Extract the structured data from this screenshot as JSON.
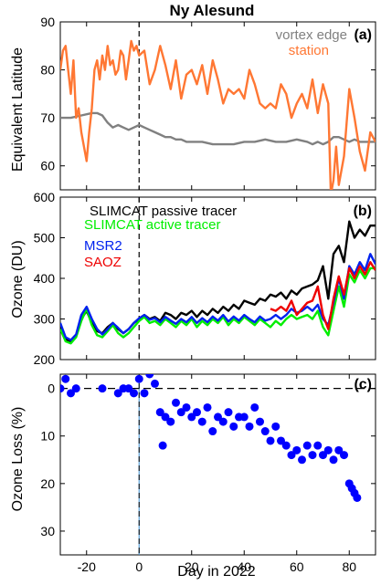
{
  "chart_data": [
    {
      "type": "line",
      "title": "Ny Alesund",
      "panel_label": "(a)",
      "ylabel": "Equivalent Latitude",
      "xlim": [
        -30,
        90
      ],
      "ylim": [
        55,
        90
      ],
      "yticks": [
        60,
        70,
        80,
        90
      ],
      "legend_position": "top-right",
      "series": [
        {
          "name": "vortex edge",
          "color": "#808080",
          "x": [
            -30,
            -26,
            -22,
            -18,
            -16,
            -14,
            -12,
            -10,
            -8,
            -6,
            -4,
            -2,
            0,
            2,
            4,
            6,
            8,
            10,
            12,
            14,
            16,
            18,
            20,
            24,
            28,
            32,
            36,
            40,
            44,
            48,
            52,
            56,
            60,
            64,
            66,
            68,
            70,
            72,
            74,
            76,
            78,
            80,
            82,
            84,
            86,
            88,
            90
          ],
          "y": [
            70,
            70,
            70.5,
            71,
            71,
            70.5,
            69,
            68,
            68.5,
            68,
            67.5,
            68,
            68.5,
            68,
            67.5,
            67,
            66.5,
            66,
            66,
            65.5,
            65.5,
            65,
            65,
            65,
            64.5,
            64.5,
            64.5,
            65,
            65,
            65.5,
            65,
            65,
            65.5,
            65,
            64.5,
            65,
            64.5,
            65,
            66,
            66,
            65.5,
            65,
            65.5,
            65,
            65,
            65,
            65
          ]
        },
        {
          "name": "station",
          "color": "#ff7733",
          "x": [
            -30,
            -29,
            -28,
            -27,
            -26,
            -25,
            -24,
            -23,
            -22,
            -21,
            -20,
            -19,
            -18,
            -17,
            -16,
            -15,
            -14,
            -13,
            -12,
            -11,
            -10,
            -9,
            -8,
            -7,
            -6,
            -5,
            -4,
            -3,
            -2,
            -1,
            0,
            2,
            4,
            6,
            8,
            10,
            12,
            14,
            16,
            18,
            20,
            22,
            24,
            26,
            28,
            30,
            32,
            34,
            36,
            38,
            40,
            42,
            44,
            46,
            48,
            50,
            52,
            54,
            56,
            58,
            60,
            62,
            64,
            66,
            68,
            70,
            72,
            73,
            74,
            75,
            76,
            78,
            80,
            82,
            84,
            86,
            88,
            90
          ],
          "y": [
            80,
            84,
            85,
            80,
            75,
            82,
            70,
            72,
            67,
            64,
            61,
            67,
            72,
            80,
            82,
            78,
            83,
            80,
            85,
            81,
            82,
            79,
            80,
            84,
            83,
            78,
            82,
            86,
            84,
            85,
            83,
            84,
            77,
            80,
            85,
            81,
            76,
            82,
            74,
            79,
            80,
            77,
            81,
            75,
            82,
            78,
            73,
            76,
            75,
            76,
            74,
            80,
            77,
            73,
            72,
            73,
            72,
            77,
            75,
            70,
            73,
            75,
            72,
            78,
            71,
            77,
            73,
            54,
            57,
            64,
            56,
            62,
            76,
            70,
            63,
            59,
            67,
            65
          ]
        }
      ]
    },
    {
      "type": "line",
      "panel_label": "(b)",
      "ylabel": "Ozone (DU)",
      "xlim": [
        -30,
        90
      ],
      "ylim": [
        200,
        600
      ],
      "yticks": [
        200,
        300,
        400,
        500,
        600
      ],
      "legend_position": "top-left",
      "series": [
        {
          "name": "SLIMCAT passive tracer",
          "color": "#000000",
          "x": [
            -30,
            -28,
            -26,
            -24,
            -22,
            -20,
            -18,
            -16,
            -14,
            -12,
            -10,
            -8,
            -6,
            -4,
            -2,
            0,
            2,
            4,
            6,
            8,
            10,
            12,
            14,
            16,
            18,
            20,
            22,
            24,
            26,
            28,
            30,
            32,
            34,
            36,
            38,
            40,
            42,
            44,
            46,
            48,
            50,
            52,
            54,
            56,
            58,
            60,
            62,
            64,
            66,
            68,
            70,
            72,
            74,
            76,
            78,
            80,
            82,
            84,
            86,
            88,
            90
          ],
          "y": [
            280,
            250,
            245,
            260,
            300,
            320,
            290,
            270,
            265,
            280,
            290,
            275,
            265,
            275,
            290,
            300,
            310,
            300,
            305,
            295,
            315,
            310,
            300,
            315,
            310,
            320,
            305,
            320,
            310,
            325,
            315,
            330,
            320,
            335,
            325,
            345,
            340,
            335,
            350,
            345,
            360,
            355,
            365,
            350,
            370,
            360,
            375,
            380,
            385,
            395,
            430,
            350,
            460,
            480,
            440,
            540,
            500,
            520,
            505,
            530,
            530
          ]
        },
        {
          "name": "SLIMCAT active tracer",
          "color": "#00ee00",
          "x": [
            -30,
            -28,
            -26,
            -24,
            -22,
            -20,
            -18,
            -16,
            -14,
            -12,
            -10,
            -8,
            -6,
            -4,
            -2,
            0,
            2,
            4,
            6,
            8,
            10,
            12,
            14,
            16,
            18,
            20,
            22,
            24,
            26,
            28,
            30,
            32,
            34,
            36,
            38,
            40,
            42,
            44,
            46,
            48,
            50,
            52,
            54,
            56,
            58,
            60,
            62,
            64,
            66,
            68,
            70,
            72,
            74,
            76,
            78,
            80,
            82,
            84,
            86,
            88,
            90
          ],
          "y": [
            275,
            245,
            240,
            255,
            295,
            325,
            285,
            260,
            255,
            270,
            285,
            265,
            255,
            265,
            280,
            295,
            305,
            290,
            295,
            285,
            300,
            290,
            280,
            295,
            285,
            300,
            280,
            295,
            285,
            300,
            290,
            305,
            285,
            300,
            290,
            305,
            295,
            285,
            300,
            290,
            280,
            295,
            285,
            300,
            310,
            300,
            305,
            310,
            300,
            320,
            280,
            260,
            320,
            380,
            330,
            410,
            390,
            420,
            400,
            425,
            425
          ]
        },
        {
          "name": "MSR2",
          "color": "#0022ee",
          "x": [
            -30,
            -28,
            -26,
            -24,
            -22,
            -20,
            -18,
            -16,
            -14,
            -12,
            -10,
            -8,
            -6,
            -4,
            -2,
            0,
            2,
            4,
            6,
            8,
            10,
            12,
            14,
            16,
            18,
            20,
            22,
            24,
            26,
            28,
            30,
            32,
            34,
            36,
            38,
            40,
            42,
            44,
            46,
            48,
            50,
            52,
            54,
            56,
            58,
            60,
            62,
            64,
            66,
            68,
            70,
            72,
            74,
            76,
            78,
            80,
            82,
            84,
            86,
            88,
            90
          ],
          "y": [
            290,
            255,
            248,
            262,
            310,
            330,
            300,
            275,
            262,
            275,
            290,
            278,
            265,
            275,
            290,
            302,
            310,
            298,
            302,
            292,
            305,
            296,
            288,
            300,
            292,
            305,
            290,
            302,
            292,
            306,
            296,
            310,
            294,
            306,
            296,
            310,
            300,
            292,
            306,
            296,
            300,
            310,
            300,
            310,
            325,
            315,
            320,
            330,
            320,
            335,
            300,
            285,
            340,
            400,
            350,
            430,
            410,
            440,
            420,
            460,
            435
          ]
        },
        {
          "name": "SAOZ",
          "color": "#ee0000",
          "x": [
            50,
            52,
            54,
            56,
            58,
            60,
            62,
            64,
            66,
            68,
            70,
            72,
            74,
            76,
            78,
            80,
            82,
            84,
            86,
            88,
            90
          ],
          "y": [
            325,
            320,
            330,
            320,
            345,
            310,
            325,
            340,
            345,
            380,
            310,
            275,
            350,
            405,
            360,
            425,
            400,
            430,
            410,
            440,
            420
          ]
        }
      ]
    },
    {
      "type": "scatter",
      "panel_label": "(c)",
      "ylabel": "Ozone Loss (%)",
      "xlabel": "Day in 2022",
      "xlim": [
        -30,
        90
      ],
      "ylim": [
        -3,
        35
      ],
      "y_reversed": true,
      "xticks": [
        -20,
        0,
        20,
        40,
        60,
        80
      ],
      "yticks": [
        0,
        10,
        20,
        30
      ],
      "reference_line_y": 0,
      "reference_line_x": 0,
      "series": [
        {
          "name": "",
          "color": "#0000ff",
          "x": [
            -30,
            -28,
            -26,
            -24,
            -14,
            -8,
            -6,
            -4,
            -2,
            0,
            2,
            4,
            6,
            8,
            9,
            10,
            12,
            14,
            16,
            18,
            20,
            22,
            24,
            26,
            28,
            30,
            32,
            34,
            36,
            38,
            40,
            42,
            44,
            46,
            48,
            50,
            52,
            54,
            56,
            58,
            60,
            62,
            64,
            66,
            68,
            70,
            72,
            74,
            76,
            78,
            80,
            81,
            82,
            83
          ],
          "y": [
            0,
            -2,
            1,
            0,
            0,
            1,
            0,
            0,
            1,
            -2,
            1,
            -3,
            -1,
            5,
            12,
            6,
            7,
            3,
            5,
            4,
            6,
            5,
            7,
            4,
            9,
            6,
            7,
            5,
            8,
            6,
            6,
            8,
            4,
            7,
            9,
            11,
            8,
            11,
            12,
            14,
            13,
            15,
            12,
            14,
            12,
            14,
            13,
            15,
            13,
            14,
            20,
            21,
            22,
            23
          ]
        }
      ]
    }
  ]
}
